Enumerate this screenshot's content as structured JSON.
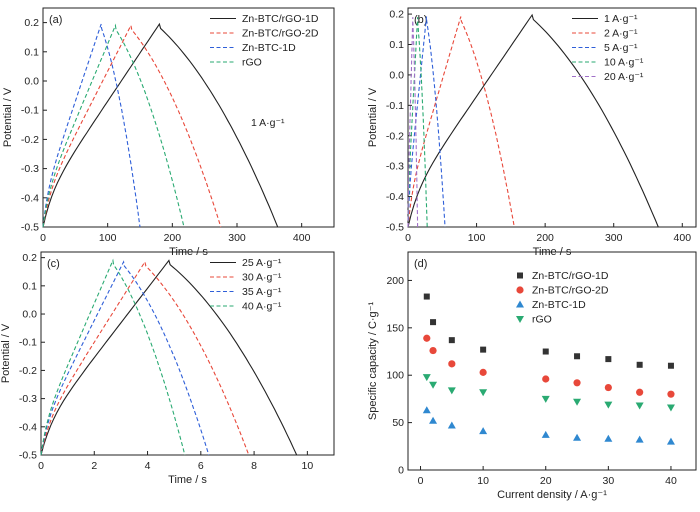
{
  "chart_data": [
    {
      "panel": "(a)",
      "type": "line",
      "xlabel": "Time / s",
      "ylabel": "Potential / V",
      "xlim": [
        0,
        450
      ],
      "ylim": [
        -0.5,
        0.25
      ],
      "xticks": [
        0,
        100,
        200,
        300,
        400
      ],
      "yticks": [
        -0.5,
        -0.4,
        -0.3,
        -0.2,
        -0.1,
        0.0,
        0.1,
        0.2
      ],
      "legend_position": "top-right",
      "annotation": "1 A·g⁻¹",
      "series": [
        {
          "name": "Zn-BTC/rGO-1D",
          "color": "#222222",
          "dash": "solid",
          "charge_end": 180,
          "discharge_end": 363,
          "peak": 0.195
        },
        {
          "name": "Zn-BTC/rGO-2D",
          "color": "#e8483a",
          "dash": "dashed",
          "charge_end": 136,
          "discharge_end": 275,
          "peak": 0.19
        },
        {
          "name": "Zn-BTC-1D",
          "color": "#2f5fd8",
          "dash": "dashed",
          "charge_end": 90,
          "discharge_end": 150,
          "peak": 0.195
        },
        {
          "name": "rGO",
          "color": "#2aaa72",
          "dash": "dashed",
          "charge_end": 112,
          "discharge_end": 218,
          "peak": 0.19
        }
      ]
    },
    {
      "panel": "(b)",
      "type": "line",
      "xlabel": "Time / s",
      "ylabel": "Potential / V",
      "xlim": [
        0,
        420
      ],
      "ylim": [
        -0.5,
        0.22
      ],
      "xticks": [
        0,
        100,
        200,
        300,
        400
      ],
      "yticks": [
        -0.5,
        -0.4,
        -0.3,
        -0.2,
        -0.1,
        0.0,
        0.1,
        0.2
      ],
      "legend_position": "top-right",
      "series": [
        {
          "name": "1 A·g⁻¹",
          "color": "#222222",
          "dash": "solid",
          "charge_end": 181,
          "discharge_end": 365,
          "peak": 0.197
        },
        {
          "name": "2 A·g⁻¹",
          "color": "#e8483a",
          "dash": "dashed",
          "charge_end": 77,
          "discharge_end": 155,
          "peak": 0.192
        },
        {
          "name": "5 A·g⁻¹",
          "color": "#2f5fd8",
          "dash": "dashed",
          "charge_end": 27,
          "discharge_end": 54,
          "peak": 0.192
        },
        {
          "name": "10 A·g⁻¹",
          "color": "#2aaa72",
          "dash": "dashed",
          "charge_end": 14,
          "discharge_end": 28,
          "peak": 0.19
        },
        {
          "name": "20 A·g⁻¹",
          "color": "#a070c8",
          "dash": "dashed",
          "charge_end": 7,
          "discharge_end": 14,
          "peak": 0.19
        }
      ]
    },
    {
      "panel": "(c)",
      "type": "line",
      "xlabel": "Time / s",
      "ylabel": "Potential / V",
      "xlim": [
        0,
        11
      ],
      "ylim": [
        -0.5,
        0.22
      ],
      "xticks": [
        0,
        2,
        4,
        6,
        8,
        10
      ],
      "yticks": [
        -0.5,
        -0.4,
        -0.3,
        -0.2,
        -0.1,
        0.0,
        0.1,
        0.2
      ],
      "legend_position": "top-right",
      "series": [
        {
          "name": "25 A·g⁻¹",
          "color": "#222222",
          "dash": "solid",
          "charge_end": 4.8,
          "discharge_end": 9.6,
          "peak": 0.19
        },
        {
          "name": "30 A·g⁻¹",
          "color": "#e8483a",
          "dash": "dashed",
          "charge_end": 3.9,
          "discharge_end": 7.8,
          "peak": 0.185
        },
        {
          "name": "35 A·g⁻¹",
          "color": "#2f5fd8",
          "dash": "dashed",
          "charge_end": 3.1,
          "discharge_end": 6.3,
          "peak": 0.185
        },
        {
          "name": "40 A·g⁻¹",
          "color": "#2aaa72",
          "dash": "dashed",
          "charge_end": 2.7,
          "discharge_end": 5.4,
          "peak": 0.19
        }
      ]
    },
    {
      "panel": "(d)",
      "type": "scatter",
      "xlabel": "Current density / A·g⁻¹",
      "ylabel": "Specific capacity / C·g⁻¹",
      "xlim": [
        -2,
        44
      ],
      "ylim": [
        0,
        230
      ],
      "xticks": [
        0,
        10,
        20,
        30,
        40
      ],
      "yticks": [
        0,
        50,
        100,
        150,
        200
      ],
      "legend_position": "top-right",
      "x": [
        1,
        2,
        5,
        10,
        20,
        25,
        30,
        35,
        40
      ],
      "series": [
        {
          "name": "Zn-BTC/rGO-1D",
          "color": "#333333",
          "marker": "square",
          "values": [
            183,
            156,
            137,
            127,
            125,
            120,
            117,
            111,
            110
          ]
        },
        {
          "name": "Zn-BTC/rGO-2D",
          "color": "#e8483a",
          "marker": "circle",
          "values": [
            139,
            126,
            112,
            103,
            96,
            92,
            87,
            82,
            80
          ]
        },
        {
          "name": "Zn-BTC-1D",
          "color": "#2f88d0",
          "marker": "triangle-up",
          "values": [
            63,
            52,
            47,
            41,
            37,
            34,
            33,
            32,
            30
          ]
        },
        {
          "name": "rGO",
          "color": "#2aaa72",
          "marker": "triangle-down",
          "values": [
            98,
            90,
            84,
            82,
            75,
            72,
            69,
            68,
            66
          ]
        }
      ]
    }
  ]
}
